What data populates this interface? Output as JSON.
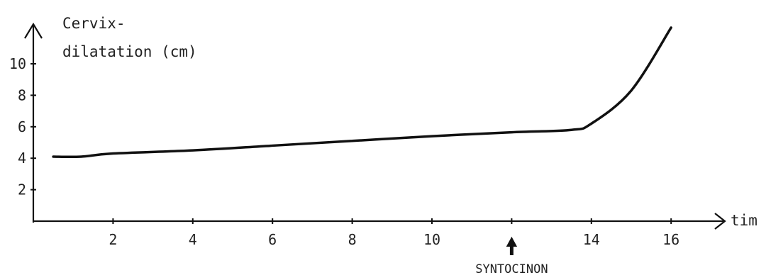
{
  "chart_data": {
    "type": "line",
    "ylabel_line1": "Cervix-",
    "ylabel_line2": "dilatation (cm)",
    "xlabel": "tim",
    "xlim": [
      0,
      17
    ],
    "ylim": [
      0,
      12
    ],
    "x_ticks": [
      2,
      4,
      6,
      8,
      10,
      12,
      14,
      16
    ],
    "x_tick_labels": [
      "2",
      "4",
      "6",
      "8",
      "10",
      "",
      "14",
      "16"
    ],
    "y_ticks": [
      2,
      4,
      6,
      8,
      10
    ],
    "y_tick_labels": [
      "2",
      "4",
      "6",
      "8",
      "10"
    ],
    "series": [
      {
        "x": [
          0.5,
          1.2,
          2,
          4,
          6,
          8,
          10,
          12,
          13.5,
          14,
          15,
          16
        ],
        "y": [
          4.1,
          4.1,
          4.3,
          4.5,
          4.8,
          5.1,
          5.4,
          5.65,
          5.8,
          6.2,
          8.3,
          12.3
        ]
      }
    ],
    "annotation": {
      "label": "SYNTOCINON",
      "x": 12
    }
  }
}
